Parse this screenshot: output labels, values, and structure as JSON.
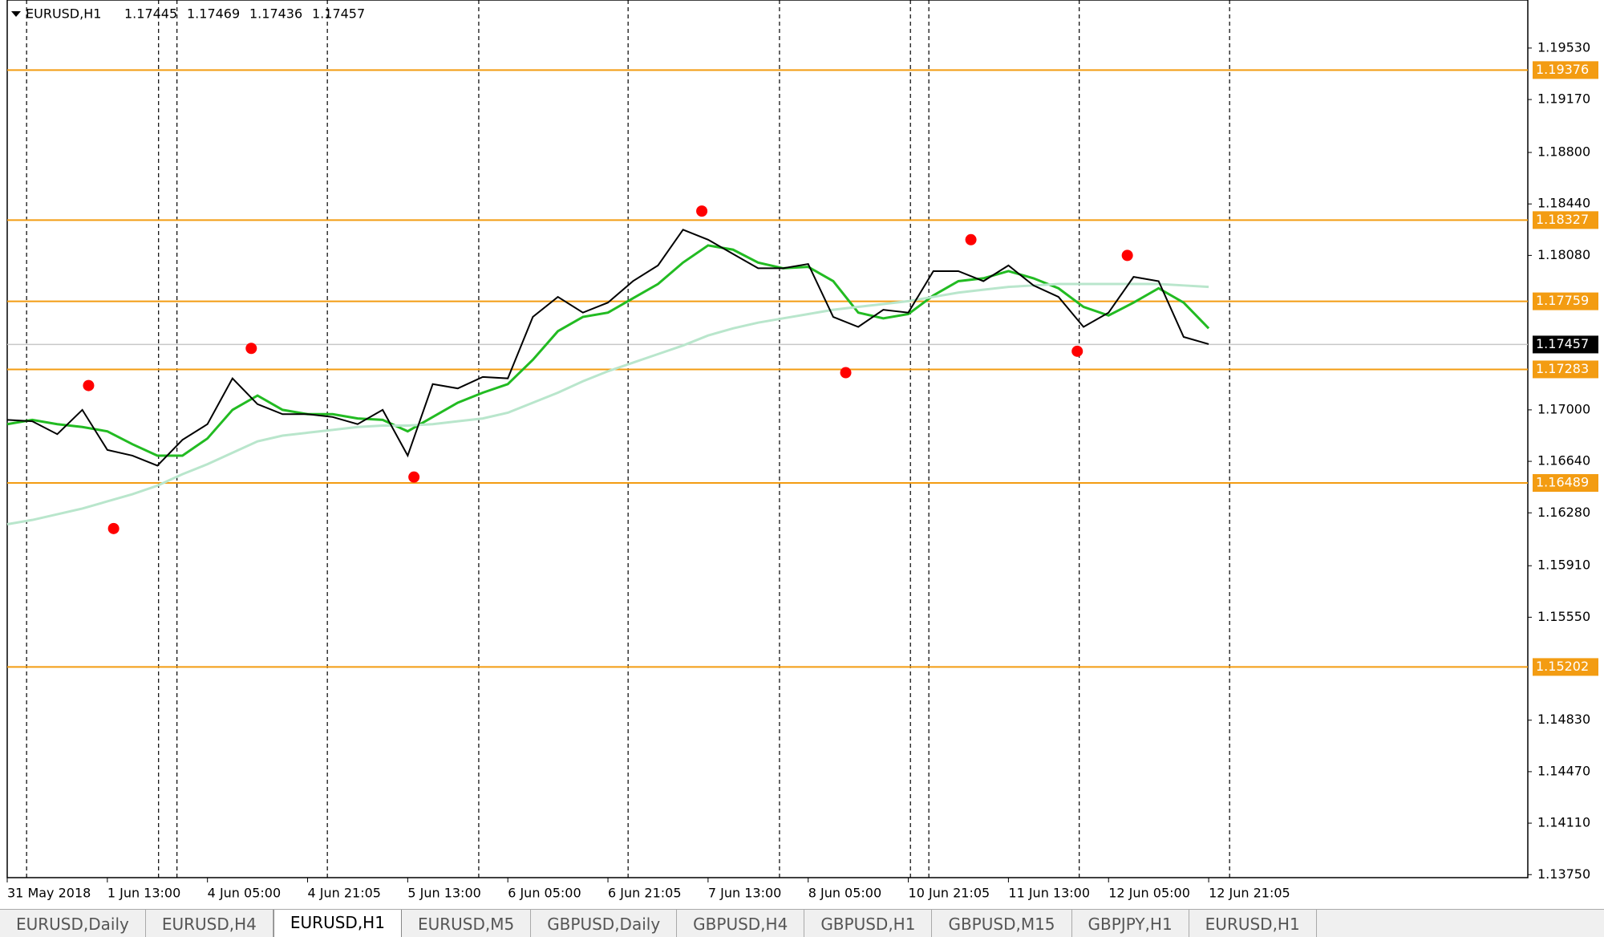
{
  "chart_data": {
    "type": "line",
    "title": "EURUSD,H1",
    "ohlc": [
      1.17445,
      1.17469,
      1.17436,
      1.17457
    ],
    "x": [
      0,
      4,
      8,
      12,
      16,
      20,
      24,
      28,
      32,
      36,
      40,
      44,
      48,
      52,
      56,
      60,
      64,
      68,
      72,
      76,
      80,
      84,
      88,
      92,
      96,
      100,
      104,
      108,
      112,
      116,
      120,
      124,
      128,
      132,
      136,
      140,
      144,
      148,
      152,
      156,
      160,
      164,
      168,
      172,
      176,
      180,
      184,
      188,
      192
    ],
    "values": [
      1.1693,
      1.1692,
      1.1683,
      1.17,
      1.1672,
      1.1668,
      1.1661,
      1.1679,
      1.169,
      1.1722,
      1.1704,
      1.1697,
      1.1697,
      1.1695,
      1.169,
      1.17,
      1.1668,
      1.1718,
      1.1715,
      1.1723,
      1.1722,
      1.1765,
      1.1779,
      1.1768,
      1.1775,
      1.179,
      1.1801,
      1.1826,
      1.1819,
      1.1809,
      1.1799,
      1.1799,
      1.1802,
      1.1765,
      1.1758,
      1.177,
      1.1768,
      1.1797,
      1.1797,
      1.179,
      1.1801,
      1.1787,
      1.1779,
      1.1758,
      1.1768,
      1.1793,
      1.179,
      1.1751,
      1.1746
    ],
    "color": "#000000",
    "series": [
      {
        "color": "#22bb22",
        "values": [
          1.169,
          1.1693,
          1.169,
          1.1688,
          1.1685,
          1.1676,
          1.1668,
          1.1668,
          1.168,
          1.17,
          1.171,
          1.17,
          1.1697,
          1.1697,
          1.1694,
          1.1693,
          1.1685,
          1.1695,
          1.1705,
          1.1712,
          1.1718,
          1.1735,
          1.1755,
          1.1765,
          1.1768,
          1.1778,
          1.1788,
          1.1803,
          1.1815,
          1.1812,
          1.1803,
          1.1799,
          1.18,
          1.179,
          1.1768,
          1.1764,
          1.1767,
          1.178,
          1.179,
          1.1792,
          1.1797,
          1.1792,
          1.1785,
          1.1772,
          1.1766,
          1.1775,
          1.1785,
          1.1775,
          1.1757
        ]
      },
      {
        "color": "#b9e6cc",
        "values": [
          1.162,
          1.1623,
          1.1627,
          1.1631,
          1.1636,
          1.1641,
          1.1647,
          1.1655,
          1.1662,
          1.167,
          1.1678,
          1.1682,
          1.1684,
          1.1686,
          1.1688,
          1.1689,
          1.1689,
          1.169,
          1.1692,
          1.1694,
          1.1698,
          1.1705,
          1.1712,
          1.172,
          1.1727,
          1.1733,
          1.1739,
          1.1745,
          1.1752,
          1.1757,
          1.1761,
          1.1764,
          1.1767,
          1.177,
          1.1772,
          1.1774,
          1.1776,
          1.1779,
          1.1782,
          1.1784,
          1.1786,
          1.1787,
          1.1788,
          1.1788,
          1.1788,
          1.1788,
          1.1788,
          1.1787,
          1.1786
        ]
      }
    ],
    "levels": [
      1.19376,
      1.18327,
      1.17759,
      1.17283,
      1.16489,
      1.15202
    ],
    "level_color": "#f39c12",
    "current": 1.17457,
    "fractals": {
      "x": [
        13,
        17,
        39,
        65,
        111,
        134,
        154,
        171,
        179
      ],
      "values": [
        1.1717,
        1.1617,
        1.1743,
        1.1653,
        1.1839,
        1.1726,
        1.1819,
        1.1741,
        1.1808
      ],
      "color": "#ff0000"
    },
    "xlim": [
      0,
      243
    ],
    "ylim": [
      1.13729,
      1.19866
    ],
    "xticks": [
      {
        "value": 0,
        "label": "31 May 2018"
      },
      {
        "value": 16,
        "label": "1 Jun 13:00"
      },
      {
        "value": 32,
        "label": "4 Jun 05:00"
      },
      {
        "value": 48,
        "label": "4 Jun 21:05"
      },
      {
        "value": 64,
        "label": "5 Jun 13:00"
      },
      {
        "value": 80,
        "label": "6 Jun 05:00"
      },
      {
        "value": 96,
        "label": "6 Jun 21:05"
      },
      {
        "value": 112,
        "label": "7 Jun 13:00"
      },
      {
        "value": 128,
        "label": "8 Jun 05:00"
      },
      {
        "value": 144,
        "label": "10 Jun 21:05"
      },
      {
        "value": 160,
        "label": "11 Jun 13:00"
      },
      {
        "value": 176,
        "label": "12 Jun 05:00"
      },
      {
        "value": 192,
        "label": "12 Jun 21:05"
      }
    ],
    "yticks": [
      {
        "value": 1.1953,
        "label": "1.19530"
      },
      {
        "value": 1.1917,
        "label": "1.19170"
      },
      {
        "value": 1.188,
        "label": "1.18800"
      },
      {
        "value": 1.1844,
        "label": "1.18440"
      },
      {
        "value": 1.1808,
        "label": "1.18080"
      },
      {
        "value": 1.17,
        "label": "1.17000"
      },
      {
        "value": 1.1664,
        "label": "1.16640"
      },
      {
        "value": 1.1628,
        "label": "1.16280"
      },
      {
        "value": 1.1591,
        "label": "1.15910"
      },
      {
        "value": 1.1555,
        "label": "1.15550"
      },
      {
        "value": 1.1483,
        "label": "1.14830"
      },
      {
        "value": 1.1447,
        "label": "1.14470"
      },
      {
        "value": 1.1411,
        "label": "1.14110"
      },
      {
        "value": 1.1375,
        "label": "1.13750"
      }
    ]
  },
  "tabs": [
    "EURUSD,Daily",
    "EURUSD,H4",
    "EURUSD,H1",
    "EURUSD,M5",
    "GBPUSD,Daily",
    "GBPUSD,H4",
    "GBPUSD,H1",
    "GBPUSD,M15",
    "GBPJPY,H1",
    "EURUSD,H1"
  ]
}
